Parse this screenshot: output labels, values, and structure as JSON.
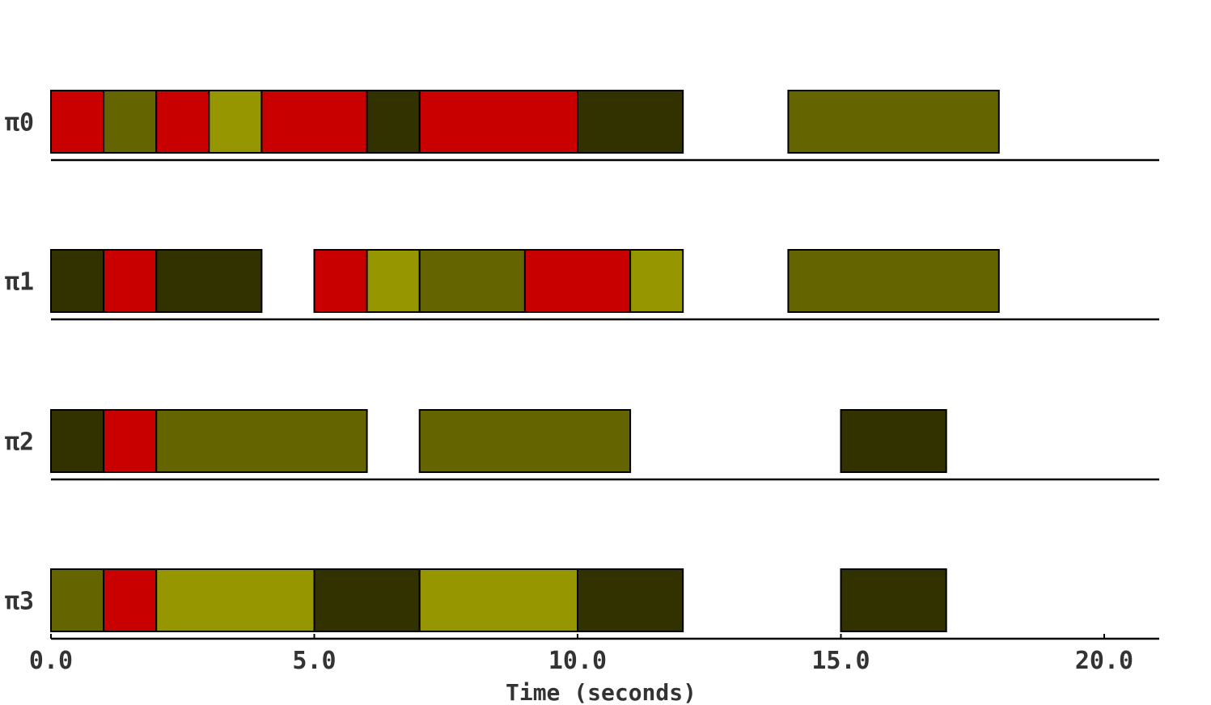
{
  "chart_data": {
    "type": "gantt",
    "title": "",
    "xlabel": "Time (seconds)",
    "ylabel": "",
    "xlim": [
      0,
      21
    ],
    "x_ticks": [
      0,
      5,
      10,
      15,
      20
    ],
    "x_tick_labels": [
      "0.0",
      "5.0",
      "10.0",
      "15.0",
      "20.0"
    ],
    "grid": false,
    "colors": {
      "red": "#c80000",
      "olive": "#646400",
      "yellow_olive": "#969600",
      "dark_olive": "#323200"
    },
    "lanes": [
      {
        "label": "π0",
        "tasks": [
          {
            "start": 0,
            "end": 1,
            "color": "red"
          },
          {
            "start": 1,
            "end": 2,
            "color": "olive"
          },
          {
            "start": 2,
            "end": 3,
            "color": "red"
          },
          {
            "start": 3,
            "end": 4,
            "color": "yellow_olive"
          },
          {
            "start": 4,
            "end": 6,
            "color": "red"
          },
          {
            "start": 6,
            "end": 7,
            "color": "dark_olive"
          },
          {
            "start": 7,
            "end": 10,
            "color": "red"
          },
          {
            "start": 10,
            "end": 12,
            "color": "dark_olive"
          },
          {
            "start": 14,
            "end": 18,
            "color": "olive"
          }
        ]
      },
      {
        "label": "π1",
        "tasks": [
          {
            "start": 0,
            "end": 1,
            "color": "dark_olive"
          },
          {
            "start": 1,
            "end": 2,
            "color": "red"
          },
          {
            "start": 2,
            "end": 4,
            "color": "dark_olive"
          },
          {
            "start": 5,
            "end": 6,
            "color": "red"
          },
          {
            "start": 6,
            "end": 7,
            "color": "yellow_olive"
          },
          {
            "start": 7,
            "end": 9,
            "color": "olive"
          },
          {
            "start": 9,
            "end": 11,
            "color": "red"
          },
          {
            "start": 11,
            "end": 12,
            "color": "yellow_olive"
          },
          {
            "start": 14,
            "end": 18,
            "color": "olive"
          }
        ]
      },
      {
        "label": "π2",
        "tasks": [
          {
            "start": 0,
            "end": 1,
            "color": "dark_olive"
          },
          {
            "start": 1,
            "end": 2,
            "color": "red"
          },
          {
            "start": 2,
            "end": 6,
            "color": "olive"
          },
          {
            "start": 7,
            "end": 11,
            "color": "olive"
          },
          {
            "start": 15,
            "end": 17,
            "color": "dark_olive"
          }
        ]
      },
      {
        "label": "π3",
        "tasks": [
          {
            "start": 0,
            "end": 1,
            "color": "olive"
          },
          {
            "start": 1,
            "end": 2,
            "color": "red"
          },
          {
            "start": 2,
            "end": 5,
            "color": "yellow_olive"
          },
          {
            "start": 5,
            "end": 7,
            "color": "dark_olive"
          },
          {
            "start": 7,
            "end": 10,
            "color": "yellow_olive"
          },
          {
            "start": 10,
            "end": 12,
            "color": "dark_olive"
          },
          {
            "start": 15,
            "end": 17,
            "color": "dark_olive"
          }
        ]
      }
    ]
  }
}
